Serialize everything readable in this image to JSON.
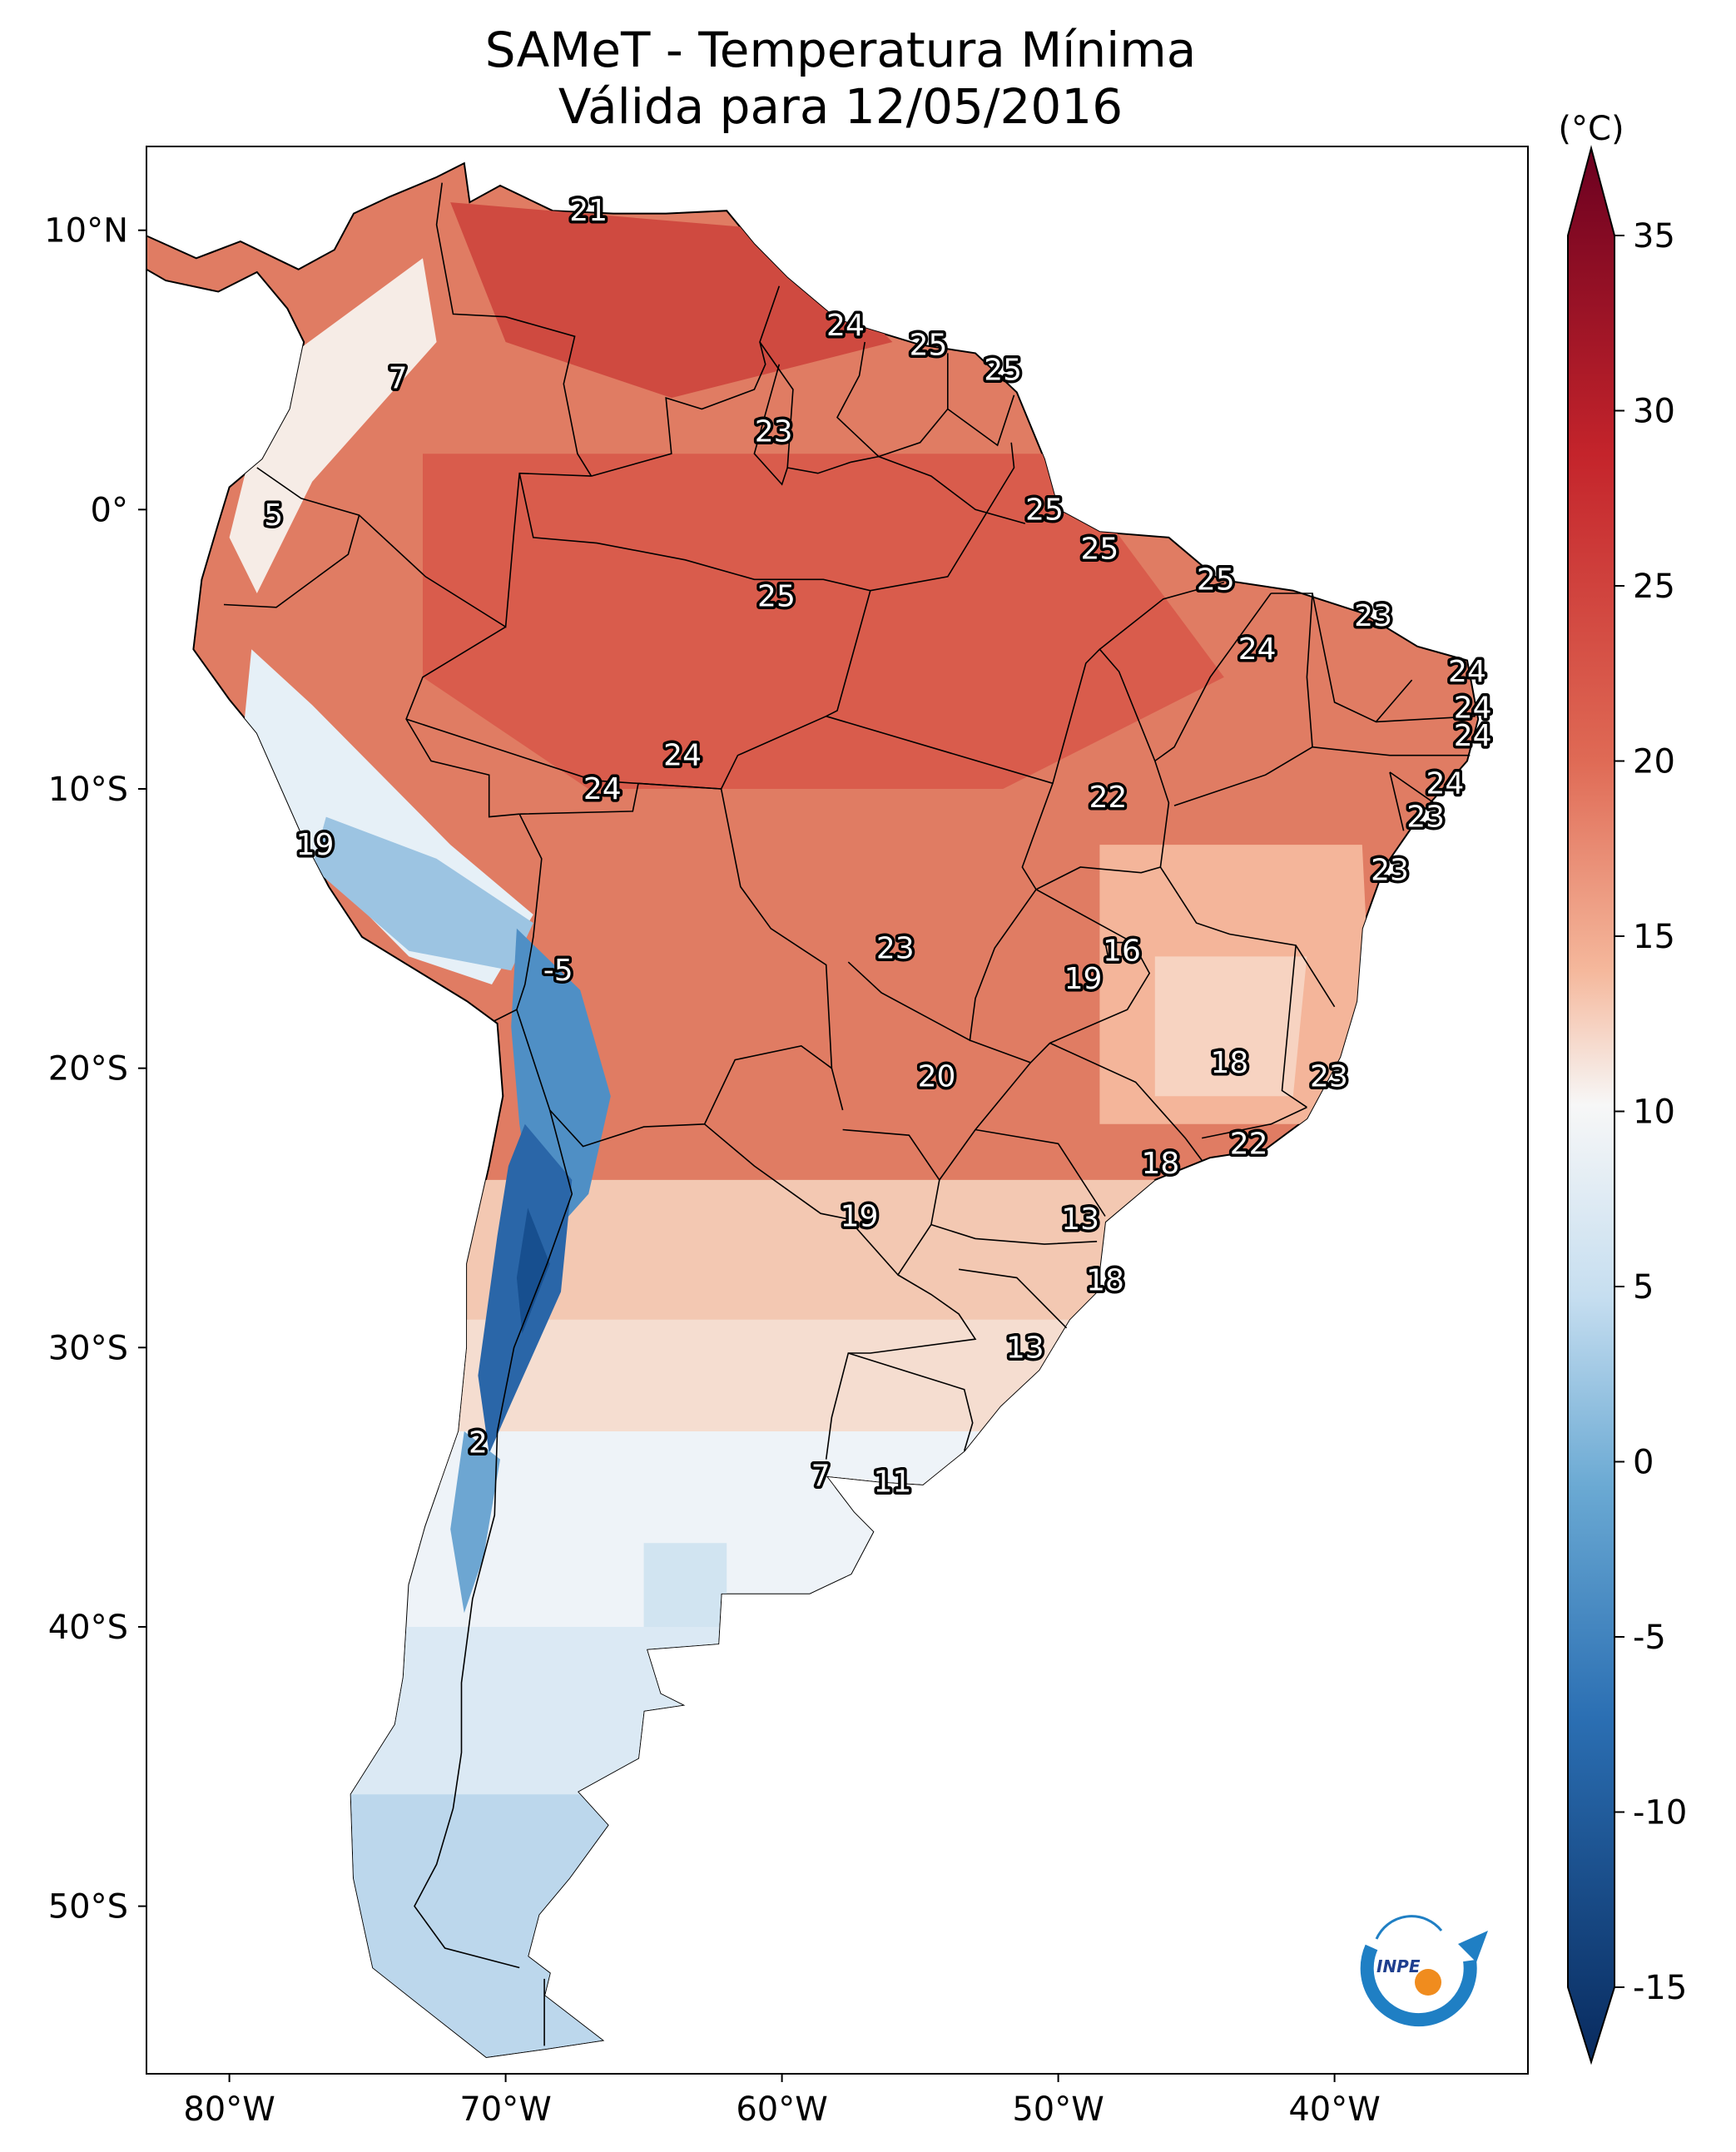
{
  "title": "SAMeT - Temperatura Mínima",
  "subtitle": "Válida para 12/05/2016",
  "colorbar": {
    "unit": "(°C)",
    "ticks": [
      "35",
      "30",
      "25",
      "20",
      "15",
      "10",
      "5",
      "0",
      "-5",
      "-10",
      "-15"
    ],
    "tick_values": [
      35,
      30,
      25,
      20,
      15,
      10,
      5,
      0,
      -5,
      -10,
      -15
    ],
    "min": -15,
    "max": 35,
    "colors": [
      "#08306b",
      "#2166ac",
      "#4393c3",
      "#92c5de",
      "#d1e5f0",
      "#f7f7f7",
      "#fddbc7",
      "#f4a582",
      "#d6604d",
      "#b2182b",
      "#67001f"
    ]
  },
  "map": {
    "lon_range": [
      -83,
      -33
    ],
    "lat_range": [
      -56,
      13
    ],
    "lat_ticks": [
      {
        "value": 10,
        "label": "10°N"
      },
      {
        "value": 0,
        "label": "0°"
      },
      {
        "value": -10,
        "label": "10°S"
      },
      {
        "value": -20,
        "label": "20°S"
      },
      {
        "value": -30,
        "label": "30°S"
      },
      {
        "value": -40,
        "label": "40°S"
      },
      {
        "value": -50,
        "label": "50°S"
      }
    ],
    "lon_ticks": [
      {
        "value": -80,
        "label": "80°W"
      },
      {
        "value": -70,
        "label": "70°W"
      },
      {
        "value": -60,
        "label": "60°W"
      },
      {
        "value": -50,
        "label": "50°W"
      },
      {
        "value": -40,
        "label": "40°W"
      }
    ]
  },
  "station_labels": [
    {
      "text": "21",
      "lon": -67,
      "lat": 10.7
    },
    {
      "text": "24",
      "lon": -57.7,
      "lat": 6.6
    },
    {
      "text": "25",
      "lon": -54.7,
      "lat": 5.9
    },
    {
      "text": "25",
      "lon": -52,
      "lat": 5.0
    },
    {
      "text": "7",
      "lon": -73.9,
      "lat": 4.7
    },
    {
      "text": "23",
      "lon": -60.3,
      "lat": 2.8
    },
    {
      "text": "5",
      "lon": -78.4,
      "lat": -0.2
    },
    {
      "text": "25",
      "lon": -50.5,
      "lat": 0.0
    },
    {
      "text": "25",
      "lon": -48.5,
      "lat": -1.4
    },
    {
      "text": "25",
      "lon": -44.3,
      "lat": -2.5
    },
    {
      "text": "25",
      "lon": -60.2,
      "lat": -3.1
    },
    {
      "text": "23",
      "lon": -38.6,
      "lat": -3.8
    },
    {
      "text": "24",
      "lon": -42.8,
      "lat": -5.0
    },
    {
      "text": "24",
      "lon": -35.2,
      "lat": -5.8
    },
    {
      "text": "24",
      "lon": -35,
      "lat": -7.1
    },
    {
      "text": "24",
      "lon": -35,
      "lat": -8.1
    },
    {
      "text": "24",
      "lon": -63.6,
      "lat": -8.8
    },
    {
      "text": "24",
      "lon": -36,
      "lat": -9.8
    },
    {
      "text": "24",
      "lon": -66.5,
      "lat": -10.0
    },
    {
      "text": "22",
      "lon": -48.2,
      "lat": -10.3
    },
    {
      "text": "23",
      "lon": -36.7,
      "lat": -11.0
    },
    {
      "text": "19",
      "lon": -76.9,
      "lat": -12.0
    },
    {
      "text": "23",
      "lon": -38.0,
      "lat": -12.9
    },
    {
      "text": "16",
      "lon": -47.7,
      "lat": -15.8
    },
    {
      "text": "23",
      "lon": -55.9,
      "lat": -15.7
    },
    {
      "text": "-5",
      "lon": -68.1,
      "lat": -16.5
    },
    {
      "text": "19",
      "lon": -49.1,
      "lat": -16.8
    },
    {
      "text": "18",
      "lon": -43.8,
      "lat": -19.8
    },
    {
      "text": "23",
      "lon": -40.2,
      "lat": -20.3
    },
    {
      "text": "20",
      "lon": -54.4,
      "lat": -20.3
    },
    {
      "text": "22",
      "lon": -43.1,
      "lat": -22.7
    },
    {
      "text": "18",
      "lon": -46.3,
      "lat": -23.4
    },
    {
      "text": "19",
      "lon": -57.2,
      "lat": -25.3
    },
    {
      "text": "13",
      "lon": -49.2,
      "lat": -25.4
    },
    {
      "text": "18",
      "lon": -48.3,
      "lat": -27.6
    },
    {
      "text": "13",
      "lon": -51.2,
      "lat": -30.0
    },
    {
      "text": "2",
      "lon": -71.0,
      "lat": -33.4
    },
    {
      "text": "7",
      "lon": -58.6,
      "lat": -34.6
    },
    {
      "text": "11",
      "lon": -56.0,
      "lat": -34.8
    }
  ],
  "logo": {
    "text": "INPE"
  }
}
